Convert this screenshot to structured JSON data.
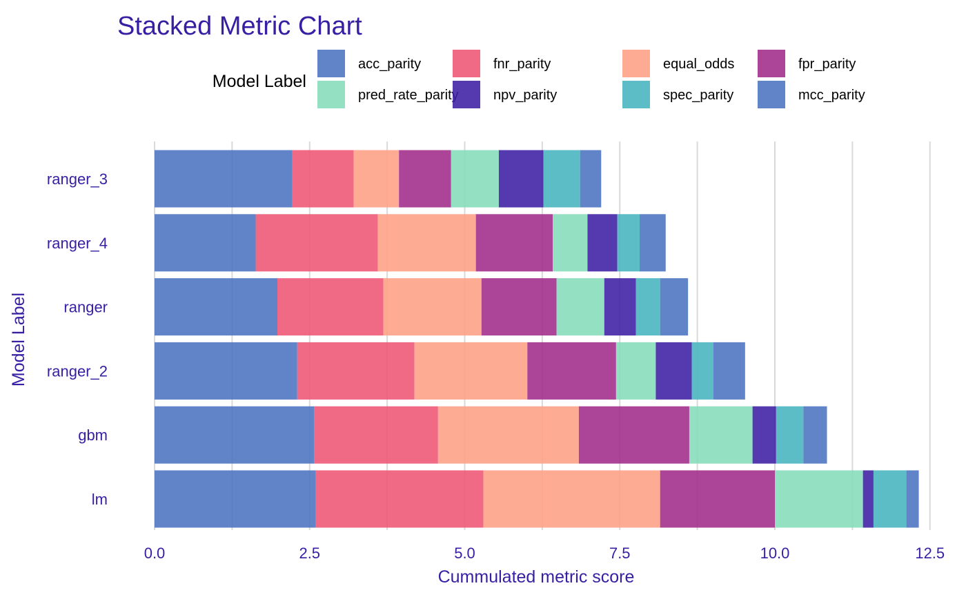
{
  "colors": {
    "text": "#371ea3",
    "grid": "#d9d9d9",
    "background": "#ffffff"
  },
  "legend": {
    "title": "Model Label",
    "position": "top"
  },
  "chart_data": {
    "type": "bar",
    "orientation": "horizontal",
    "stacked": true,
    "title": "Stacked Metric Chart",
    "xlabel": "Cummulated metric score",
    "ylabel": "Model Label",
    "xlim": [
      0,
      12.5
    ],
    "x_ticks": [
      "0.0",
      "2.5",
      "5.0",
      "7.5",
      "10.0",
      "12.5"
    ],
    "grid": true,
    "categories": [
      "lm",
      "gbm",
      "ranger_2",
      "ranger",
      "ranger_4",
      "ranger_3"
    ],
    "series": [
      {
        "name": "acc_parity",
        "color": "#4a73bf",
        "values": [
          2.6,
          2.57,
          2.3,
          1.98,
          1.63,
          2.22
        ]
      },
      {
        "name": "fnr_parity",
        "color": "#ee5574",
        "values": [
          2.7,
          2.0,
          1.89,
          1.71,
          1.97,
          0.99
        ]
      },
      {
        "name": "equal_odds",
        "color": "#fe9f85",
        "values": [
          2.85,
          2.27,
          1.82,
          1.58,
          1.58,
          0.73
        ]
      },
      {
        "name": "fpr_parity",
        "color": "#a02b8a",
        "values": [
          1.85,
          1.78,
          1.43,
          1.21,
          1.24,
          0.84
        ]
      },
      {
        "name": "pred_rate_parity",
        "color": "#84dcb9",
        "values": [
          1.42,
          1.02,
          0.64,
          0.77,
          0.56,
          0.77
        ]
      },
      {
        "name": "npv_parity",
        "color": "#3d1ea3",
        "values": [
          0.17,
          0.38,
          0.58,
          0.51,
          0.48,
          0.72
        ]
      },
      {
        "name": "spec_parity",
        "color": "#46b4bf",
        "values": [
          0.53,
          0.44,
          0.35,
          0.39,
          0.36,
          0.59
        ]
      },
      {
        "name": "mcc_parity",
        "color": "#4a73bf",
        "values": [
          0.2,
          0.38,
          0.51,
          0.45,
          0.42,
          0.34
        ]
      }
    ]
  }
}
